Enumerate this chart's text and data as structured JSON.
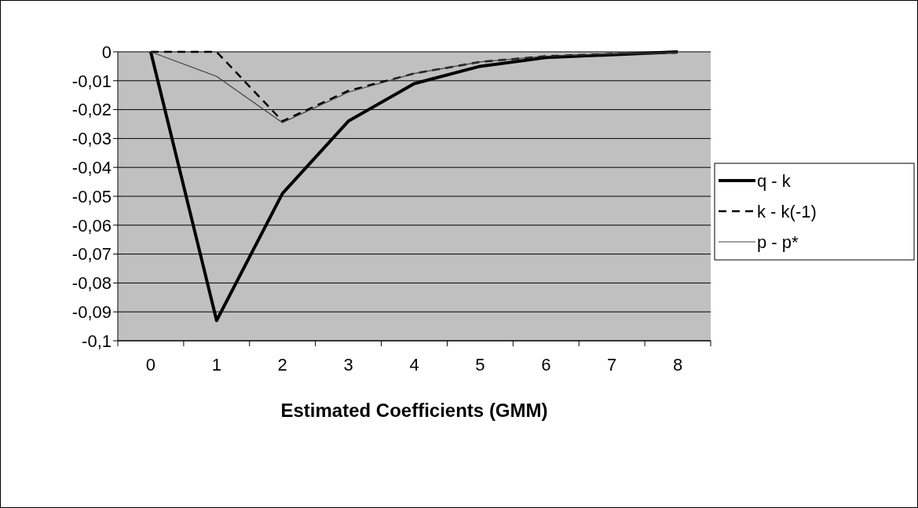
{
  "chart_data": {
    "type": "line",
    "xlabel": "Estimated Coefficients (GMM)",
    "categories": [
      "0",
      "1",
      "2",
      "3",
      "4",
      "5",
      "6",
      "7",
      "8"
    ],
    "series": [
      {
        "name": "q - k",
        "color": "#000000",
        "line_style": "solid",
        "values": [
          0,
          -0.093,
          -0.049,
          -0.024,
          -0.011,
          -0.005,
          -0.002,
          -0.001,
          0
        ]
      },
      {
        "name": "k - k(-1)",
        "color": "#000000",
        "line_style": "dashed",
        "values": [
          0,
          0,
          -0.024,
          -0.0135,
          -0.0075,
          -0.0035,
          -0.0015,
          -0.0007,
          -0.0003
        ]
      },
      {
        "name": "p - p*",
        "color": "#404040",
        "line_style": "solid",
        "values": [
          0,
          -0.0085,
          -0.0245,
          -0.014,
          -0.0075,
          -0.0035,
          -0.0015,
          -0.0007,
          -0.0003
        ]
      }
    ],
    "ylim": [
      -0.1,
      0
    ],
    "yticks": [
      {
        "value": 0,
        "label": "0"
      },
      {
        "value": -0.01,
        "label": "-0,01"
      },
      {
        "value": -0.02,
        "label": "-0,02"
      },
      {
        "value": -0.03,
        "label": "-0,03"
      },
      {
        "value": -0.04,
        "label": "-0,04"
      },
      {
        "value": -0.05,
        "label": "-0,05"
      },
      {
        "value": -0.06,
        "label": "-0,06"
      },
      {
        "value": -0.07,
        "label": "-0,07"
      },
      {
        "value": -0.08,
        "label": "-0,08"
      },
      {
        "value": -0.09,
        "label": "-0,09"
      },
      {
        "value": -0.1,
        "label": "-0,1"
      }
    ],
    "grid": "y",
    "legend": "right",
    "marker": "none"
  }
}
